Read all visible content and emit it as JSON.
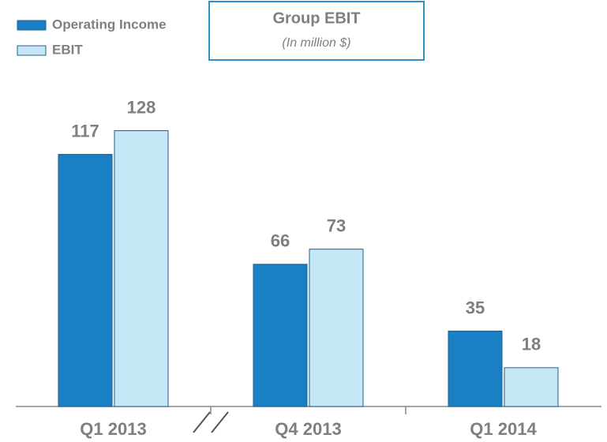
{
  "chart_data": {
    "type": "bar",
    "title": "Group EBIT",
    "subtitle": "(In million $)",
    "categories": [
      "Q1 2013",
      "Q4 2013",
      "Q1 2014"
    ],
    "series": [
      {
        "name": "Operating Income",
        "color": "#1a7fc4",
        "values": [
          117,
          66,
          35
        ]
      },
      {
        "name": "EBIT",
        "color": "#c6e7f6",
        "values": [
          128,
          73,
          18
        ]
      }
    ],
    "legend": "top-left"
  }
}
